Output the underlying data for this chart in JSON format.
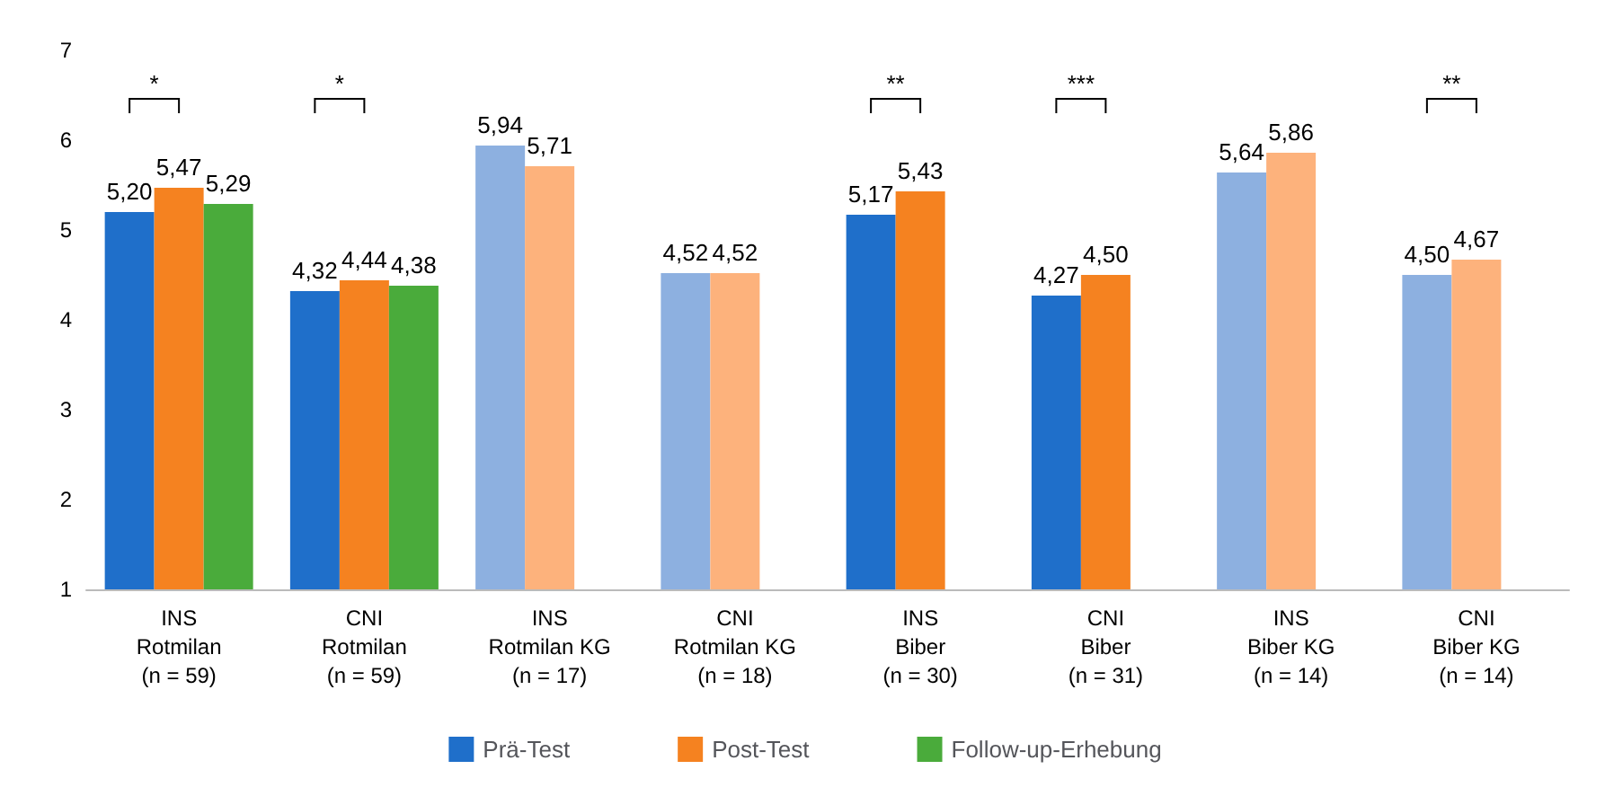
{
  "chart_data": {
    "type": "bar",
    "categories": [
      "INS\nRotmilan\n(n = 59)",
      "CNI\nRotmilan\n(n = 59)",
      "INS\nRotmilan KG\n(n = 17)",
      "CNI\nRotmilan KG\n(n = 18)",
      "INS\nBiber\n(n = 30)",
      "CNI\nBiber\n(n = 31)",
      "INS\nBiber KG\n(n = 14)",
      "CNI\nBiber KG\n(n = 14)"
    ],
    "series": [
      {
        "name": "Prä-Test",
        "color": "#1f6fca",
        "colors": [
          "#1f6fca",
          "#1f6fca",
          "#8db0e0",
          "#8db0e0",
          "#1f6fca",
          "#1f6fca",
          "#8db0e0",
          "#8db0e0"
        ],
        "values": [
          5.2,
          4.32,
          5.94,
          4.52,
          5.17,
          4.27,
          5.64,
          4.5
        ],
        "value_labels": [
          "5,20",
          "4,32",
          "5,94",
          "4,52",
          "5,17",
          "4,27",
          "5,64",
          "4,50"
        ]
      },
      {
        "name": "Post-Test",
        "color": "#f58220",
        "colors": [
          "#f58220",
          "#f58220",
          "#fdb27c",
          "#fdb27c",
          "#f58220",
          "#f58220",
          "#fdb27c",
          "#fdb27c"
        ],
        "values": [
          5.47,
          4.44,
          5.71,
          4.52,
          5.43,
          4.5,
          5.86,
          4.67
        ],
        "value_labels": [
          "5,47",
          "4,44",
          "5,71",
          "4,52",
          "5,43",
          "4,50",
          "5,86",
          "4,67"
        ]
      },
      {
        "name": "Follow-up-Erhebung",
        "color": "#4aab3b",
        "values": [
          5.29,
          4.38,
          null,
          null,
          null,
          null,
          null,
          null
        ],
        "value_labels": [
          "5,29",
          "4,38",
          null,
          null,
          null,
          null,
          null,
          null
        ]
      }
    ],
    "ylim": [
      1,
      7
    ],
    "yticks": [
      1,
      2,
      3,
      4,
      5,
      6,
      7
    ],
    "grid": false,
    "legend": "bottom",
    "annotations": [
      "*",
      "*",
      "**",
      "***",
      "**"
    ]
  }
}
